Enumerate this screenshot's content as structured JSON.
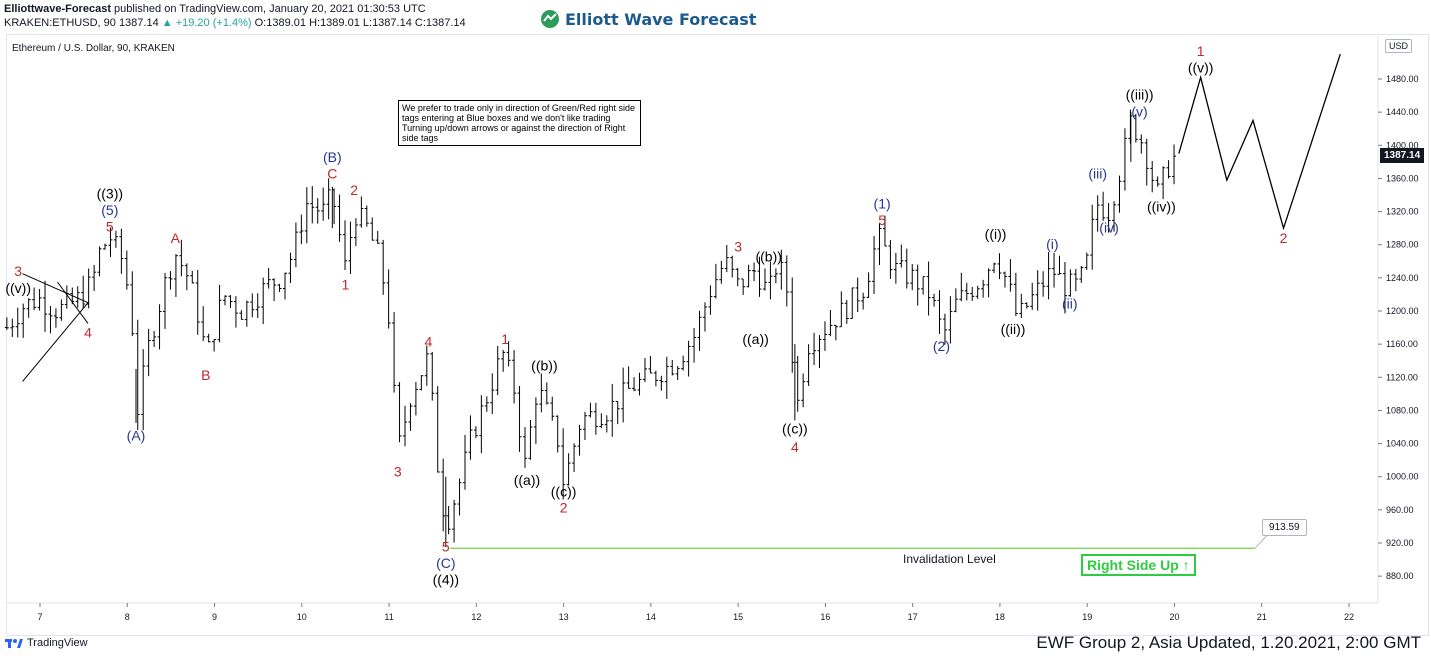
{
  "header": {
    "publisher": "Elliottwave-Forecast",
    "published_text": "published on TradingView.com, January 20, 2021 01:30:53 UTC",
    "symbol_line": "KRAKEN:ETHUSD, 90",
    "last": "1387.14",
    "change": "+19.20 (+1.4%)",
    "ohlc": {
      "o": "O:1389.01",
      "h": "H:1389.01",
      "l": "L:1387.14",
      "c": "C:1387.14"
    }
  },
  "brand": {
    "name": "Elliott Wave Forecast",
    "color": "#1d5b8c"
  },
  "chart_title": "Ethereum / U.S. Dollar, 90, KRAKEN",
  "note": "We prefer to trade only in direction of Green/Red right side tags entering at Blue boxes and we don't like trading Turning up/down arrows or against the direction of Right side tags",
  "currency_badge": "USD",
  "current_price_tag": "1387.14",
  "invalidation": {
    "label": "Invalidation Level",
    "price": "913.59",
    "value": 913.59
  },
  "right_side_tag": "Right Side Up ↑",
  "tradingview_label": "TradingView",
  "footer": "EWF Group 2, Asia Updated, 1.20.2021, 2:00 GMT",
  "colors": {
    "red_label": "#c0282b",
    "blue_label": "#283593",
    "black_label": "#000000",
    "green": "#2ecc40",
    "invalidation_line": "#7ed957"
  },
  "chart_data": {
    "type": "ohlc",
    "ylim": [
      850,
      1510
    ],
    "xlim": [
      6.6,
      22.4
    ],
    "y_ticks": [
      "1480.00",
      "1440.00",
      "1400.00",
      "1360.00",
      "1320.00",
      "1280.00",
      "1240.00",
      "1200.00",
      "1160.00",
      "1120.00",
      "1080.00",
      "1040.00",
      "1000.00",
      "960.00",
      "920.00",
      "880.00"
    ],
    "x_ticks": [
      "7",
      "8",
      "9",
      "10",
      "11",
      "12",
      "13",
      "14",
      "15",
      "16",
      "17",
      "18",
      "19",
      "20",
      "21",
      "22"
    ],
    "price_path": [
      [
        6.62,
        1180
      ],
      [
        6.8,
        1205
      ],
      [
        6.98,
        1215
      ],
      [
        7.2,
        1200
      ],
      [
        7.45,
        1215
      ],
      [
        7.6,
        1235
      ],
      [
        7.68,
        1270
      ],
      [
        7.8,
        1290
      ],
      [
        7.95,
        1260
      ],
      [
        8.05,
        1200
      ],
      [
        8.1,
        1070
      ],
      [
        8.25,
        1160
      ],
      [
        8.45,
        1240
      ],
      [
        8.55,
        1270
      ],
      [
        8.7,
        1240
      ],
      [
        8.85,
        1180
      ],
      [
        8.9,
        1140
      ],
      [
        9.1,
        1220
      ],
      [
        9.3,
        1200
      ],
      [
        9.6,
        1230
      ],
      [
        9.75,
        1240
      ],
      [
        9.9,
        1270
      ],
      [
        10.05,
        1330
      ],
      [
        10.25,
        1320
      ],
      [
        10.35,
        1340
      ],
      [
        10.5,
        1250
      ],
      [
        10.6,
        1320
      ],
      [
        10.75,
        1300
      ],
      [
        10.9,
        1260
      ],
      [
        11.0,
        1190
      ],
      [
        11.1,
        1030
      ],
      [
        11.25,
        1100
      ],
      [
        11.45,
        1145
      ],
      [
        11.55,
        1020
      ],
      [
        11.65,
        940
      ],
      [
        11.8,
        990
      ],
      [
        11.95,
        1050
      ],
      [
        12.1,
        1090
      ],
      [
        12.3,
        1150
      ],
      [
        12.45,
        1100
      ],
      [
        12.55,
        1010
      ],
      [
        12.7,
        1110
      ],
      [
        12.8,
        1080
      ],
      [
        12.95,
        1040
      ],
      [
        13.0,
        990
      ],
      [
        13.2,
        1070
      ],
      [
        13.5,
        1080
      ],
      [
        13.8,
        1110
      ],
      [
        14.0,
        1120
      ],
      [
        14.3,
        1140
      ],
      [
        14.5,
        1170
      ],
      [
        14.7,
        1230
      ],
      [
        14.85,
        1260
      ],
      [
        15.0,
        1230
      ],
      [
        15.2,
        1250
      ],
      [
        15.35,
        1220
      ],
      [
        15.45,
        1260
      ],
      [
        15.55,
        1230
      ],
      [
        15.6,
        1200
      ],
      [
        15.65,
        1070
      ],
      [
        15.8,
        1160
      ],
      [
        16.0,
        1180
      ],
      [
        16.2,
        1200
      ],
      [
        16.45,
        1230
      ],
      [
        16.6,
        1290
      ],
      [
        16.8,
        1250
      ],
      [
        17.0,
        1240
      ],
      [
        17.2,
        1220
      ],
      [
        17.35,
        1170
      ],
      [
        17.5,
        1210
      ],
      [
        17.8,
        1240
      ],
      [
        17.95,
        1270
      ],
      [
        18.1,
        1230
      ],
      [
        18.2,
        1190
      ],
      [
        18.4,
        1220
      ],
      [
        18.6,
        1250
      ],
      [
        18.75,
        1230
      ],
      [
        18.9,
        1230
      ],
      [
        19.0,
        1260
      ],
      [
        19.1,
        1330
      ],
      [
        19.25,
        1320
      ],
      [
        19.4,
        1380
      ],
      [
        19.5,
        1430
      ],
      [
        19.65,
        1400
      ],
      [
        19.8,
        1340
      ],
      [
        19.95,
        1380
      ],
      [
        20.05,
        1390
      ]
    ],
    "projection": [
      [
        20.05,
        1390
      ],
      [
        20.3,
        1482
      ],
      [
        20.6,
        1358
      ],
      [
        20.9,
        1430
      ],
      [
        21.25,
        1300
      ],
      [
        21.9,
        1510
      ]
    ],
    "wave_labels": [
      {
        "text": "((v))",
        "x": 6.75,
        "y": 1222,
        "color": "black"
      },
      {
        "text": "3",
        "x": 6.75,
        "y": 1242,
        "color": "red"
      },
      {
        "text": "4",
        "x": 7.55,
        "y": 1168,
        "color": "red"
      },
      {
        "text": "((3))",
        "x": 7.8,
        "y": 1336,
        "color": "black"
      },
      {
        "text": "(5)",
        "x": 7.8,
        "y": 1316,
        "color": "blue"
      },
      {
        "text": "5",
        "x": 7.8,
        "y": 1296,
        "color": "red"
      },
      {
        "text": "(A)",
        "x": 8.1,
        "y": 1044,
        "color": "blue"
      },
      {
        "text": "A",
        "x": 8.55,
        "y": 1282,
        "color": "red"
      },
      {
        "text": "B",
        "x": 8.9,
        "y": 1117,
        "color": "red"
      },
      {
        "text": "(B)",
        "x": 10.35,
        "y": 1380,
        "color": "blue"
      },
      {
        "text": "C",
        "x": 10.35,
        "y": 1360,
        "color": "red"
      },
      {
        "text": "2",
        "x": 10.6,
        "y": 1340,
        "color": "red"
      },
      {
        "text": "1",
        "x": 10.5,
        "y": 1226,
        "color": "red"
      },
      {
        "text": "3",
        "x": 11.1,
        "y": 1000,
        "color": "red"
      },
      {
        "text": "4",
        "x": 11.45,
        "y": 1157,
        "color": "red"
      },
      {
        "text": "5",
        "x": 11.65,
        "y": 910,
        "color": "red"
      },
      {
        "text": "(C)",
        "x": 11.65,
        "y": 890,
        "color": "blue"
      },
      {
        "text": "((4))",
        "x": 11.65,
        "y": 870,
        "color": "black"
      },
      {
        "text": "1",
        "x": 12.33,
        "y": 1160,
        "color": "red"
      },
      {
        "text": "((a))",
        "x": 12.58,
        "y": 990,
        "color": "black"
      },
      {
        "text": "((b))",
        "x": 12.78,
        "y": 1128,
        "color": "black"
      },
      {
        "text": "((c))",
        "x": 13.0,
        "y": 976,
        "color": "black"
      },
      {
        "text": "2",
        "x": 13.0,
        "y": 957,
        "color": "red"
      },
      {
        "text": "3",
        "x": 15.0,
        "y": 1272,
        "color": "red"
      },
      {
        "text": "((b))",
        "x": 15.35,
        "y": 1260,
        "color": "black"
      },
      {
        "text": "((a))",
        "x": 15.2,
        "y": 1160,
        "color": "black"
      },
      {
        "text": "((c))",
        "x": 15.65,
        "y": 1052,
        "color": "black"
      },
      {
        "text": "4",
        "x": 15.65,
        "y": 1030,
        "color": "red"
      },
      {
        "text": "(1)",
        "x": 16.65,
        "y": 1324,
        "color": "blue"
      },
      {
        "text": "5",
        "x": 16.65,
        "y": 1304,
        "color": "red"
      },
      {
        "text": "(2)",
        "x": 17.33,
        "y": 1152,
        "color": "blue"
      },
      {
        "text": "((i))",
        "x": 17.95,
        "y": 1287,
        "color": "black"
      },
      {
        "text": "((ii))",
        "x": 18.15,
        "y": 1172,
        "color": "black"
      },
      {
        "text": "(i)",
        "x": 18.6,
        "y": 1275,
        "color": "blue"
      },
      {
        "text": "(ii)",
        "x": 18.8,
        "y": 1203,
        "color": "blue"
      },
      {
        "text": "(iii)",
        "x": 19.12,
        "y": 1360,
        "color": "blue"
      },
      {
        "text": "(iv)",
        "x": 19.25,
        "y": 1295,
        "color": "blue"
      },
      {
        "text": "((iii))",
        "x": 19.6,
        "y": 1455,
        "color": "black"
      },
      {
        "text": "(v)",
        "x": 19.6,
        "y": 1435,
        "color": "blue"
      },
      {
        "text": "((iv))",
        "x": 19.85,
        "y": 1320,
        "color": "black"
      },
      {
        "text": "1",
        "x": 20.3,
        "y": 1508,
        "color": "red"
      },
      {
        "text": "((v))",
        "x": 20.3,
        "y": 1488,
        "color": "black"
      },
      {
        "text": "2",
        "x": 21.25,
        "y": 1282,
        "color": "red"
      }
    ]
  }
}
